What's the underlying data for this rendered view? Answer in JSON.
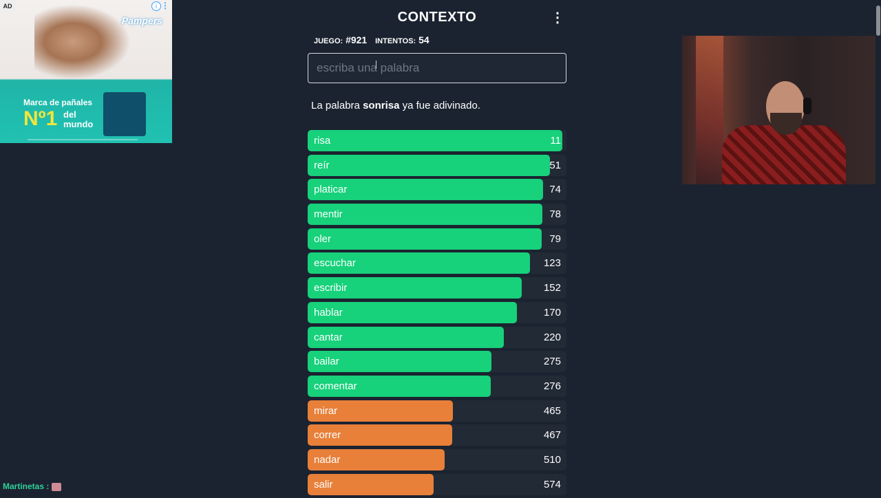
{
  "ad": {
    "badge": "AD",
    "brand": "Pampers",
    "headline": "Marca de pañales",
    "rank": "Nº1",
    "rank_sub": "del mundo"
  },
  "header": {
    "title": "CONTEXTO",
    "menu_icon": "⋮"
  },
  "stats": {
    "game_label": "JUEGO:",
    "game_value": "#921",
    "attempts_label": "INTENTOS:",
    "attempts_value": "54"
  },
  "input": {
    "value": "",
    "placeholder": "escriba una palabra"
  },
  "message": {
    "prefix": "La palabra ",
    "word": "sonrisa",
    "suffix": " ya fue adivinado."
  },
  "colors": {
    "green": "#17d17b",
    "orange": "#e8803a",
    "track": "#222a36"
  },
  "results": [
    {
      "word": "risa",
      "rank": "11",
      "fill": 0.985,
      "color": "green"
    },
    {
      "word": "reír",
      "rank": "51",
      "fill": 0.935,
      "color": "green"
    },
    {
      "word": "platicar",
      "rank": "74",
      "fill": 0.91,
      "color": "green"
    },
    {
      "word": "mentir",
      "rank": "78",
      "fill": 0.907,
      "color": "green"
    },
    {
      "word": "oler",
      "rank": "79",
      "fill": 0.905,
      "color": "green"
    },
    {
      "word": "escuchar",
      "rank": "123",
      "fill": 0.858,
      "color": "green"
    },
    {
      "word": "escribir",
      "rank": "152",
      "fill": 0.827,
      "color": "green"
    },
    {
      "word": "hablar",
      "rank": "170",
      "fill": 0.808,
      "color": "green"
    },
    {
      "word": "cantar",
      "rank": "220",
      "fill": 0.758,
      "color": "green"
    },
    {
      "word": "bailar",
      "rank": "275",
      "fill": 0.71,
      "color": "green"
    },
    {
      "word": "comentar",
      "rank": "276",
      "fill": 0.708,
      "color": "green"
    },
    {
      "word": "mirar",
      "rank": "465",
      "fill": 0.56,
      "color": "orange"
    },
    {
      "word": "correr",
      "rank": "467",
      "fill": 0.558,
      "color": "orange"
    },
    {
      "word": "nadar",
      "rank": "510",
      "fill": 0.53,
      "color": "orange"
    },
    {
      "word": "salir",
      "rank": "574",
      "fill": 0.488,
      "color": "orange"
    }
  ],
  "chat": {
    "username": "Martinetas :"
  }
}
